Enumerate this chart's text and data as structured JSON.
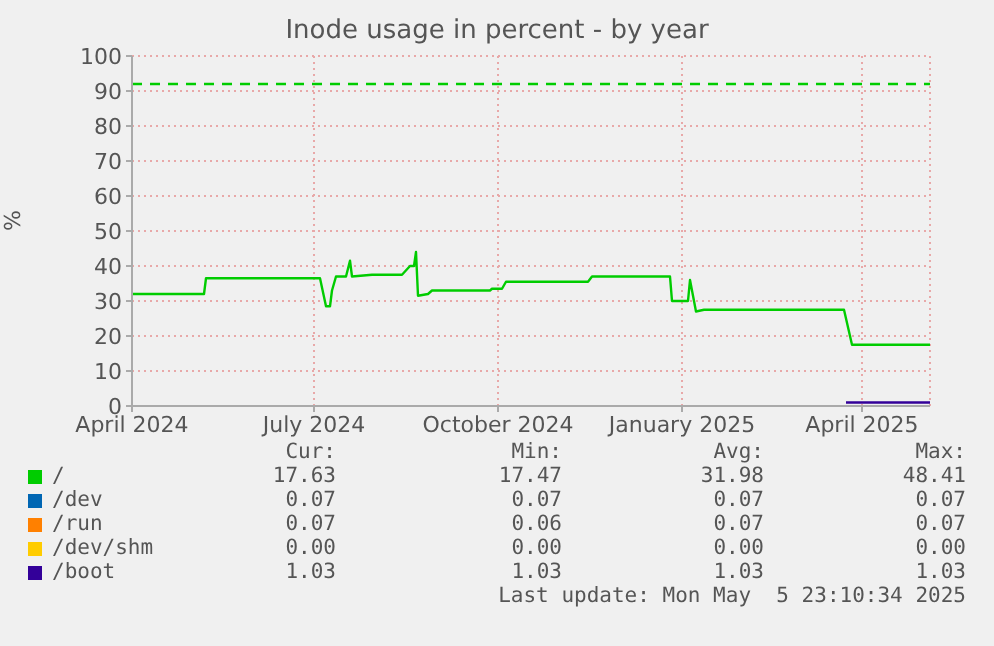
{
  "chart_data": {
    "type": "line",
    "title": "Inode usage in percent - by year",
    "ylabel": "%",
    "xlim": [
      "2024-04-01",
      "2025-05-05"
    ],
    "xticks": [
      {
        "value": "2024-04-01",
        "label": "April 2024"
      },
      {
        "value": "2024-07-01",
        "label": "July 2024"
      },
      {
        "value": "2024-10-01",
        "label": "October 2024"
      },
      {
        "value": "2025-01-01",
        "label": "January 2025"
      },
      {
        "value": "2025-04-01",
        "label": "April 2025"
      }
    ],
    "ylim": [
      0,
      100
    ],
    "yticks": [
      0,
      10,
      20,
      30,
      40,
      50,
      60,
      70,
      80,
      90,
      100
    ],
    "grid": true,
    "legend": "bottom",
    "marker": "none",
    "line_style": "solid",
    "ref_lines": [
      {
        "axis": "y",
        "value": 92,
        "color": "#00cc00",
        "line_style": "dashed"
      }
    ],
    "series": [
      {
        "name": "/",
        "color": "#00cc00",
        "x": [
          "2024-04-01",
          "2024-05-07",
          "2024-05-08",
          "2024-07-04",
          "2024-07-07",
          "2024-07-09",
          "2024-07-10",
          "2024-07-12",
          "2024-07-17",
          "2024-07-19",
          "2024-07-20",
          "2024-07-30",
          "2024-08-14",
          "2024-08-18",
          "2024-08-20",
          "2024-08-21",
          "2024-08-22",
          "2024-08-27",
          "2024-08-29",
          "2024-09-27",
          "2024-09-28",
          "2024-10-03",
          "2024-10-05",
          "2024-11-15",
          "2024-11-17",
          "2024-12-26",
          "2024-12-27",
          "2025-01-04",
          "2025-01-05",
          "2025-01-08",
          "2025-01-12",
          "2025-03-23",
          "2025-03-27",
          "2025-05-05"
        ],
        "values": [
          32,
          32,
          36.5,
          36.5,
          28.5,
          28.5,
          33,
          37,
          37,
          41.5,
          37,
          37.5,
          37.5,
          40,
          40,
          44,
          31.5,
          32,
          33,
          33,
          33.5,
          33.5,
          35.5,
          35.5,
          37,
          37,
          30,
          30,
          36,
          27,
          27.5,
          27.5,
          17.5,
          17.5
        ]
      },
      {
        "name": "/dev",
        "color": "#0066b3"
      },
      {
        "name": "/run",
        "color": "#ff8000"
      },
      {
        "name": "/dev/shm",
        "color": "#ffcc00"
      },
      {
        "name": "/boot",
        "color": "#330099",
        "x": [
          "2025-03-24",
          "2025-05-05"
        ],
        "values": [
          1,
          1
        ]
      }
    ],
    "annotations": [
      "Cur:",
      "Min:",
      "Avg:",
      "Max:",
      "17.63",
      "17.47",
      "31.98",
      "48.41",
      "0.07",
      "0.07",
      "0.07",
      "0.07",
      "0.07",
      "0.06",
      "0.07",
      "0.07",
      "0.00",
      "0.00",
      "0.00",
      "0.00",
      "1.03",
      "1.03",
      "1.03",
      "1.03",
      "Last update: Mon May  5 23:10:34 2025"
    ]
  }
}
